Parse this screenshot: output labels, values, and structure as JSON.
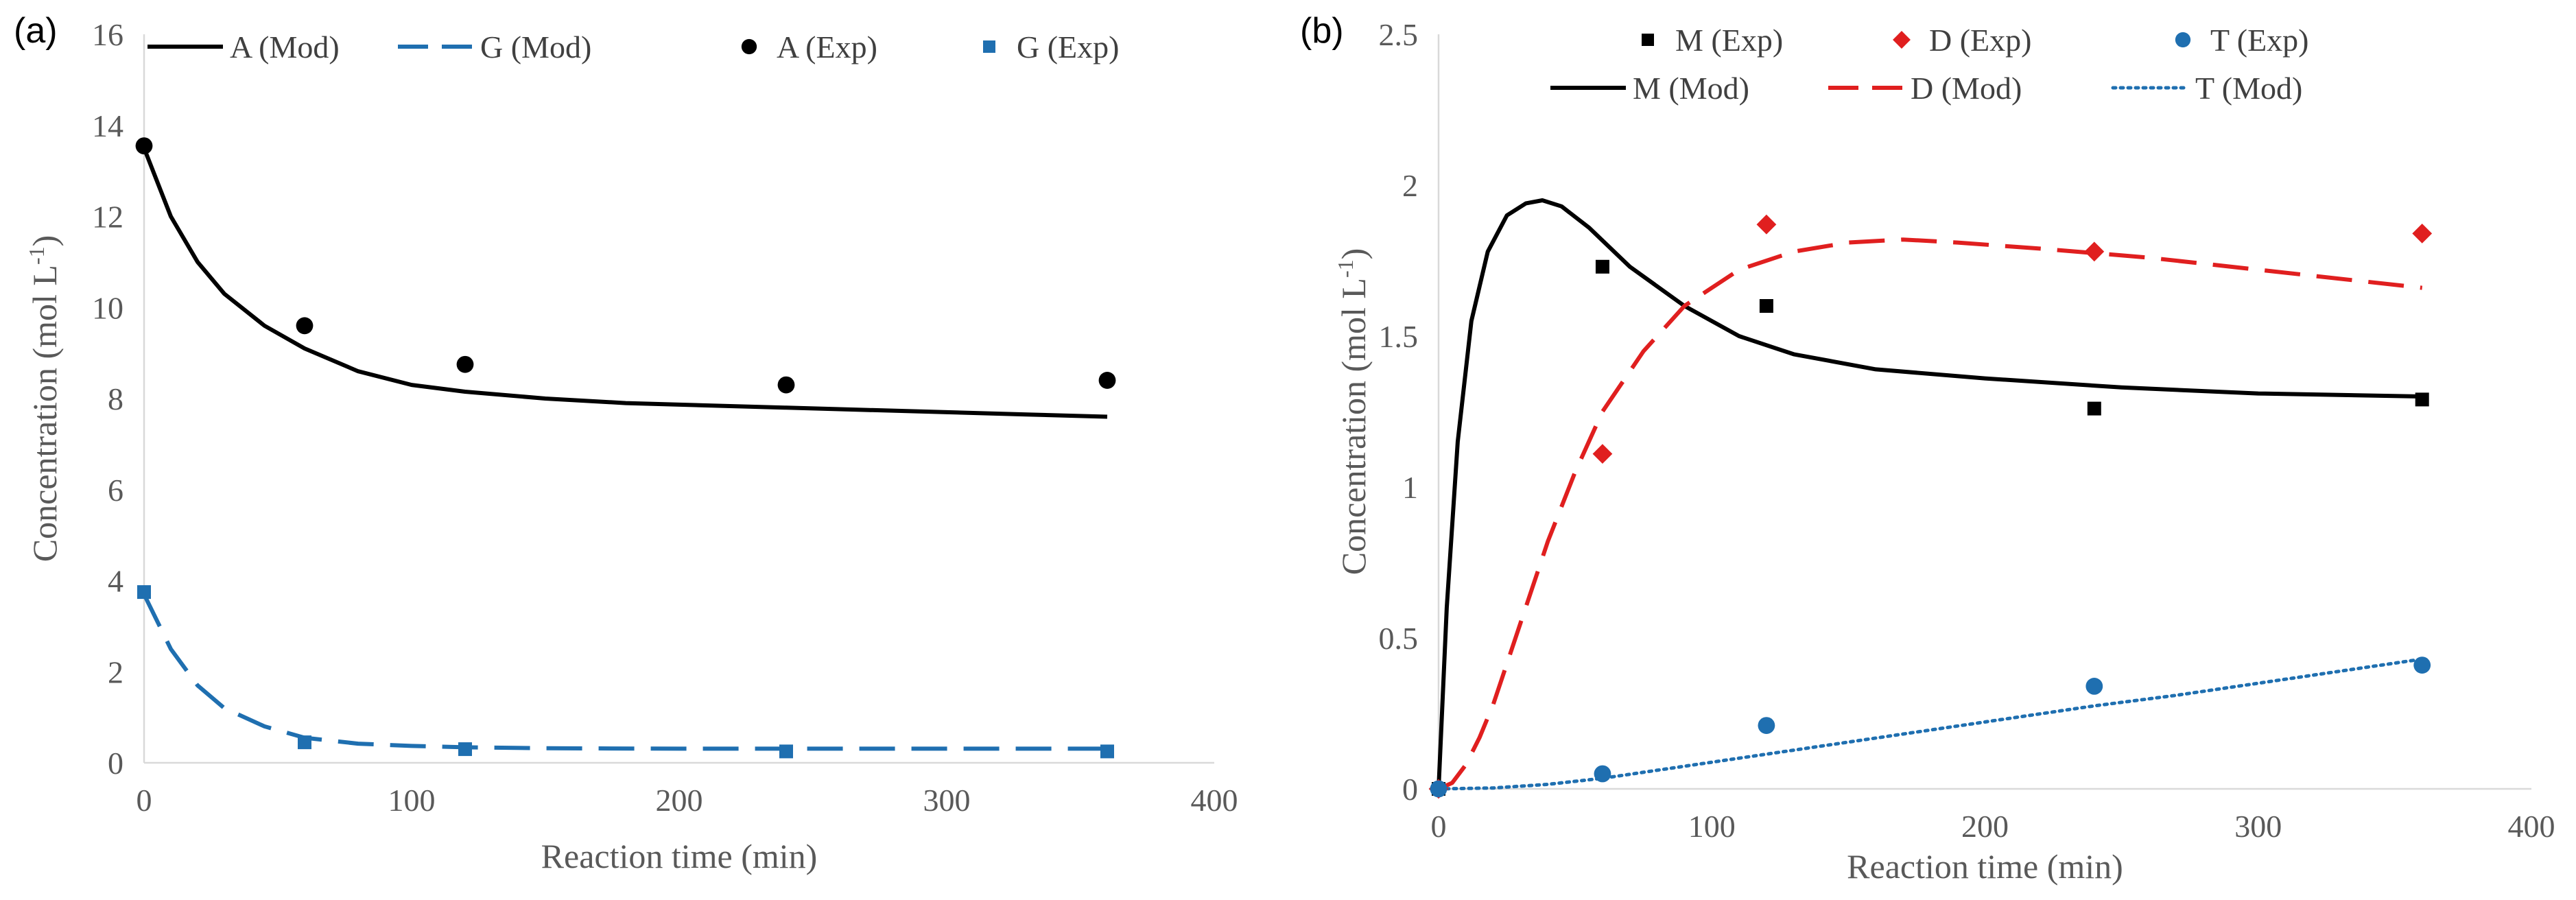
{
  "chart_data": [
    {
      "panel_label": "(a)",
      "type": "line",
      "xlabel": "Reaction time (min)",
      "ylabel": "Concentration (mol L",
      "ylabel_sup": "-1",
      "ylabel_close": ")",
      "xlim": [
        0,
        400
      ],
      "ylim": [
        0,
        16
      ],
      "xticks": [
        0,
        100,
        200,
        300,
        400
      ],
      "yticks": [
        0,
        2,
        4,
        6,
        8,
        10,
        12,
        14,
        16
      ],
      "grid": false,
      "legend_position": "top",
      "legend_order": [
        "A (Mod)",
        "G (Mod)",
        "A (Exp)",
        "G (Exp)"
      ],
      "series": [
        {
          "name": "A (Mod)",
          "kind": "line",
          "style": "solid",
          "color": "#000000",
          "x": [
            0,
            10,
            20,
            30,
            45,
            60,
            80,
            100,
            120,
            150,
            180,
            210,
            240,
            270,
            300,
            330,
            360
          ],
          "y": [
            13.5,
            12.0,
            11.0,
            10.3,
            9.6,
            9.1,
            8.6,
            8.3,
            8.15,
            8.0,
            7.9,
            7.85,
            7.8,
            7.75,
            7.7,
            7.65,
            7.6
          ]
        },
        {
          "name": "G (Mod)",
          "kind": "line",
          "style": "dashed",
          "color": "#1f6fb0",
          "x": [
            0,
            10,
            20,
            30,
            45,
            60,
            80,
            100,
            120,
            150,
            200,
            250,
            300,
            360
          ],
          "y": [
            3.7,
            2.5,
            1.7,
            1.2,
            0.8,
            0.55,
            0.42,
            0.37,
            0.34,
            0.32,
            0.31,
            0.31,
            0.31,
            0.31
          ]
        },
        {
          "name": "A (Exp)",
          "kind": "scatter",
          "marker": "circle",
          "color": "#000000",
          "x": [
            0,
            60,
            120,
            240,
            360
          ],
          "y": [
            13.55,
            9.6,
            8.75,
            8.3,
            8.4
          ]
        },
        {
          "name": "G (Exp)",
          "kind": "scatter",
          "marker": "square",
          "color": "#1f6fb0",
          "x": [
            0,
            60,
            120,
            240,
            360
          ],
          "y": [
            3.75,
            0.45,
            0.3,
            0.25,
            0.25
          ]
        }
      ]
    },
    {
      "panel_label": "(b)",
      "type": "line",
      "xlabel": "Reaction time (min)",
      "ylabel": "Concentration (mol L",
      "ylabel_sup": "-1",
      "ylabel_close": ")",
      "xlim": [
        0,
        400
      ],
      "ylim": [
        0,
        2.5
      ],
      "xticks": [
        0,
        100,
        200,
        300,
        400
      ],
      "yticks": [
        0,
        0.5,
        1,
        1.5,
        2,
        2.5
      ],
      "grid": false,
      "legend_position": "top",
      "legend_order": [
        "M (Exp)",
        "D (Exp)",
        "T (Exp)",
        "M (Mod)",
        "D (Mod)",
        "T (Mod)"
      ],
      "series": [
        {
          "name": "M (Exp)",
          "kind": "scatter",
          "marker": "square",
          "color": "#000000",
          "x": [
            0,
            60,
            120,
            240,
            360
          ],
          "y": [
            0,
            1.73,
            1.6,
            1.26,
            1.29
          ]
        },
        {
          "name": "D (Exp)",
          "kind": "scatter",
          "marker": "diamond",
          "color": "#e01f1f",
          "x": [
            0,
            60,
            120,
            240,
            360
          ],
          "y": [
            0,
            1.11,
            1.87,
            1.78,
            1.84
          ]
        },
        {
          "name": "T (Exp)",
          "kind": "scatter",
          "marker": "circle",
          "color": "#1f6fb0",
          "x": [
            0,
            60,
            120,
            240,
            360
          ],
          "y": [
            0,
            0.05,
            0.21,
            0.34,
            0.41
          ]
        },
        {
          "name": "M (Mod)",
          "kind": "line",
          "style": "solid",
          "color": "#000000",
          "x": [
            0,
            3,
            7,
            12,
            18,
            25,
            32,
            38,
            45,
            55,
            70,
            90,
            110,
            130,
            160,
            200,
            250,
            300,
            360
          ],
          "y": [
            0,
            0.6,
            1.15,
            1.55,
            1.78,
            1.9,
            1.94,
            1.95,
            1.93,
            1.86,
            1.73,
            1.6,
            1.5,
            1.44,
            1.39,
            1.36,
            1.33,
            1.31,
            1.3
          ]
        },
        {
          "name": "D (Mod)",
          "kind": "line",
          "style": "dashed",
          "color": "#e01f1f",
          "x": [
            0,
            5,
            10,
            15,
            20,
            30,
            40,
            50,
            60,
            75,
            90,
            110,
            130,
            150,
            170,
            190,
            220,
            260,
            300,
            360
          ],
          "y": [
            0,
            0.02,
            0.08,
            0.17,
            0.28,
            0.55,
            0.82,
            1.05,
            1.25,
            1.45,
            1.6,
            1.72,
            1.78,
            1.81,
            1.82,
            1.81,
            1.79,
            1.76,
            1.72,
            1.66
          ]
        },
        {
          "name": "T (Mod)",
          "kind": "line",
          "style": "dotted",
          "color": "#1f6fb0",
          "x": [
            0,
            20,
            40,
            60,
            90,
            120,
            150,
            180,
            210,
            240,
            270,
            300,
            330,
            360
          ],
          "y": [
            0,
            0.003,
            0.015,
            0.035,
            0.075,
            0.115,
            0.155,
            0.195,
            0.235,
            0.275,
            0.31,
            0.35,
            0.39,
            0.43
          ]
        }
      ]
    }
  ]
}
